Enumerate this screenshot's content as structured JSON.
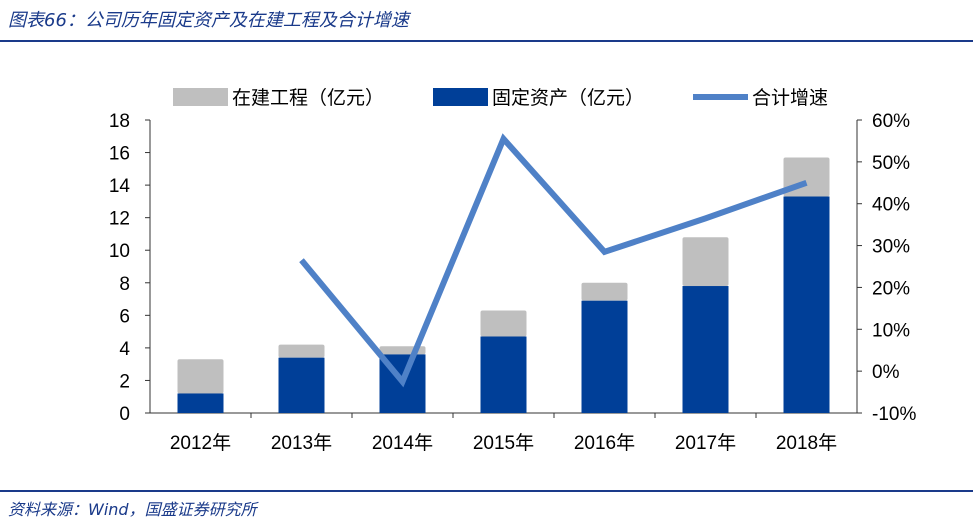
{
  "header": {
    "title": "图表66：公司历年固定资产及在建工程及合计增速"
  },
  "footer": {
    "source": "资料来源：Wind，国盛证券研究所"
  },
  "chart_data": {
    "type": "bar",
    "title": "公司历年固定资产及在建工程及合计增速",
    "categories": [
      "2012年",
      "2013年",
      "2014年",
      "2015年",
      "2016年",
      "2017年",
      "2018年"
    ],
    "series": [
      {
        "name": "在建工程（亿元）",
        "type": "bar",
        "stack": "a",
        "axis": "left",
        "color": "#bfbfbf",
        "values": [
          2.1,
          0.8,
          0.5,
          1.6,
          1.1,
          3.0,
          2.4
        ]
      },
      {
        "name": "固定资产（亿元）",
        "type": "bar",
        "stack": "a",
        "axis": "left",
        "color": "#003f98",
        "values": [
          1.2,
          3.4,
          3.6,
          4.7,
          6.9,
          7.8,
          13.3
        ]
      },
      {
        "name": "合计增速",
        "type": "line",
        "axis": "right",
        "color": "#4f81c7",
        "values": [
          null,
          26.5,
          -2.5,
          55.5,
          28.5,
          36.5,
          45.0
        ]
      }
    ],
    "left_axis": {
      "ylim": [
        0,
        18
      ],
      "ticks": [
        "0",
        "2",
        "4",
        "6",
        "8",
        "10",
        "12",
        "14",
        "16",
        "18"
      ]
    },
    "right_axis": {
      "ylim": [
        -10,
        60
      ],
      "ticks": [
        "-10%",
        "0%",
        "10%",
        "20%",
        "30%",
        "40%",
        "50%",
        "60%"
      ]
    },
    "legend": "top",
    "grid": false
  }
}
